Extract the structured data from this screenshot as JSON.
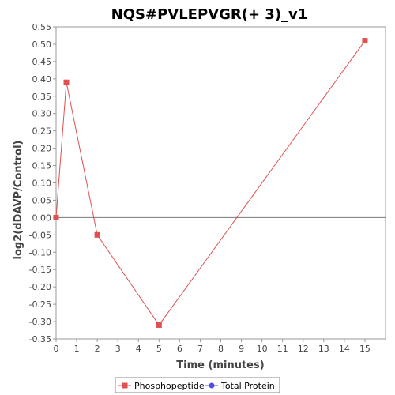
{
  "chart_data": {
    "type": "line",
    "title": "NQS#PVLEPVGR(+ 3)_v1",
    "xlabel": "Time (minutes)",
    "ylabel": "log2(dDAVP/Control)",
    "xlim": [
      0,
      16
    ],
    "ylim": [
      -0.35,
      0.55
    ],
    "x_ticks": [
      0,
      1,
      2,
      3,
      4,
      5,
      6,
      7,
      8,
      9,
      10,
      11,
      12,
      13,
      14,
      15
    ],
    "y_ticks": [
      -0.35,
      -0.3,
      -0.25,
      -0.2,
      -0.15,
      -0.1,
      -0.05,
      0.0,
      0.05,
      0.1,
      0.15,
      0.2,
      0.25,
      0.3,
      0.35,
      0.4,
      0.45,
      0.5,
      0.55
    ],
    "y_tick_labels": [
      "-0.35",
      "-0.30",
      "-0.25",
      "-0.20",
      "-0.15",
      "-0.10",
      "-0.05",
      "0.00",
      "0.05",
      "0.10",
      "0.15",
      "0.20",
      "0.25",
      "0.30",
      "0.35",
      "0.40",
      "0.45",
      "0.50",
      "0.55"
    ],
    "zero_line": true,
    "grid": false,
    "legend_position": "bottom",
    "series": [
      {
        "name": "Phosphopeptide",
        "color": "#e05050",
        "marker": "square",
        "x": [
          0,
          0.5,
          2,
          5,
          15
        ],
        "y": [
          0.0,
          0.39,
          -0.05,
          -0.31,
          0.51
        ]
      },
      {
        "name": "Total Protein",
        "color": "#5050e0",
        "marker": "circle",
        "x": [],
        "y": []
      }
    ]
  }
}
